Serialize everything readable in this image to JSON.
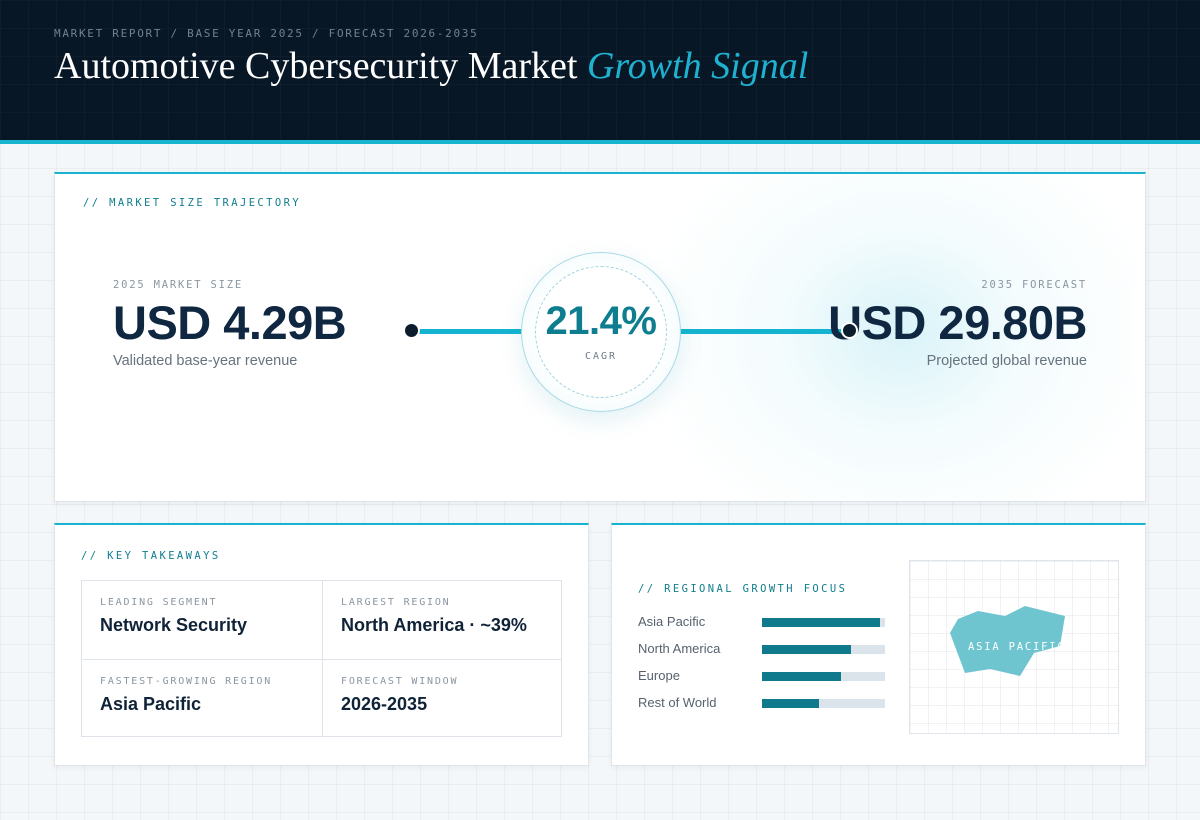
{
  "header": {
    "crumbs": "MARKET REPORT / BASE YEAR 2025 / FORECAST 2026-2035",
    "title_main": "Automotive Cybersecurity Market",
    "title_accent": "Growth Signal"
  },
  "trajectory": {
    "label": "// MARKET SIZE TRAJECTORY",
    "start": {
      "caption": "2025 MARKET SIZE",
      "value": "USD 4.29B",
      "sub": "Validated base-year revenue"
    },
    "end": {
      "caption": "2035 FORECAST",
      "value": "USD 29.80B",
      "sub": "Projected global revenue"
    },
    "cagr": {
      "value": "21.4%",
      "caption": "CAGR"
    }
  },
  "takeaways": {
    "label": "// KEY TAKEAWAYS",
    "items": [
      {
        "caption": "LEADING SEGMENT",
        "value": "Network Security"
      },
      {
        "caption": "LARGEST REGION",
        "value": "North America · ~39%"
      },
      {
        "caption": "FASTEST-GROWING REGION",
        "value": "Asia Pacific"
      },
      {
        "caption": "FORECAST WINDOW",
        "value": "2026-2035"
      }
    ]
  },
  "regional": {
    "label": "// REGIONAL GROWTH FOCUS",
    "regions": [
      {
        "name": "Asia Pacific",
        "level": 0.96
      },
      {
        "name": "North America",
        "level": 0.72
      },
      {
        "name": "Europe",
        "level": 0.64
      },
      {
        "name": "Rest of World",
        "level": 0.46
      }
    ],
    "map_label": "ASIA PACIFIC",
    "colors": {
      "bar": "#0e7a8b",
      "track": "#dbe4ea",
      "map_shape": "#6ec4cf"
    }
  },
  "colors": {
    "header_bg": "#081726",
    "accent": "#17b3cf",
    "teal_dark": "#0d7d8f",
    "navy": "#0f2740"
  }
}
